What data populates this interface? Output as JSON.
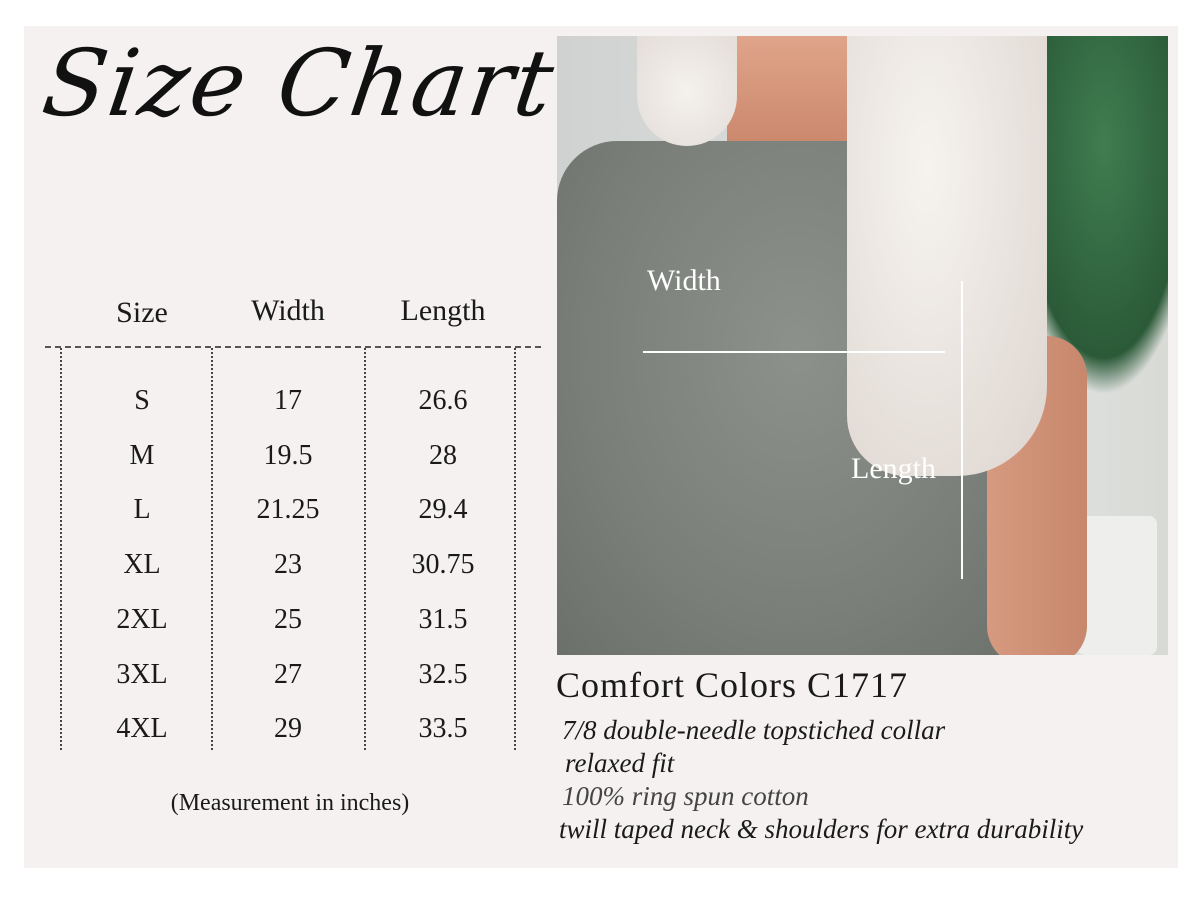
{
  "title": "Size Chart",
  "table": {
    "headers": [
      "Size",
      "Width",
      "Length"
    ],
    "rows": [
      [
        "S",
        "17",
        "26.6"
      ],
      [
        "M",
        "19.5",
        "28"
      ],
      [
        "L",
        "21.25",
        "29.4"
      ],
      [
        "XL",
        "23",
        "30.75"
      ],
      [
        "2XL",
        "25",
        "31.5"
      ],
      [
        "3XL",
        "27",
        "32.5"
      ],
      [
        "4XL",
        "29",
        "33.5"
      ]
    ]
  },
  "note": "(Measurement in inches)",
  "photo": {
    "width_label": "Width",
    "length_label": "Length"
  },
  "product": {
    "name": "Comfort Colors C1717",
    "features": [
      "7/8 double-needle topstiched collar",
      "relaxed fit",
      "100% ring spun cotton",
      "twill taped neck & shoulders for extra durability"
    ]
  }
}
